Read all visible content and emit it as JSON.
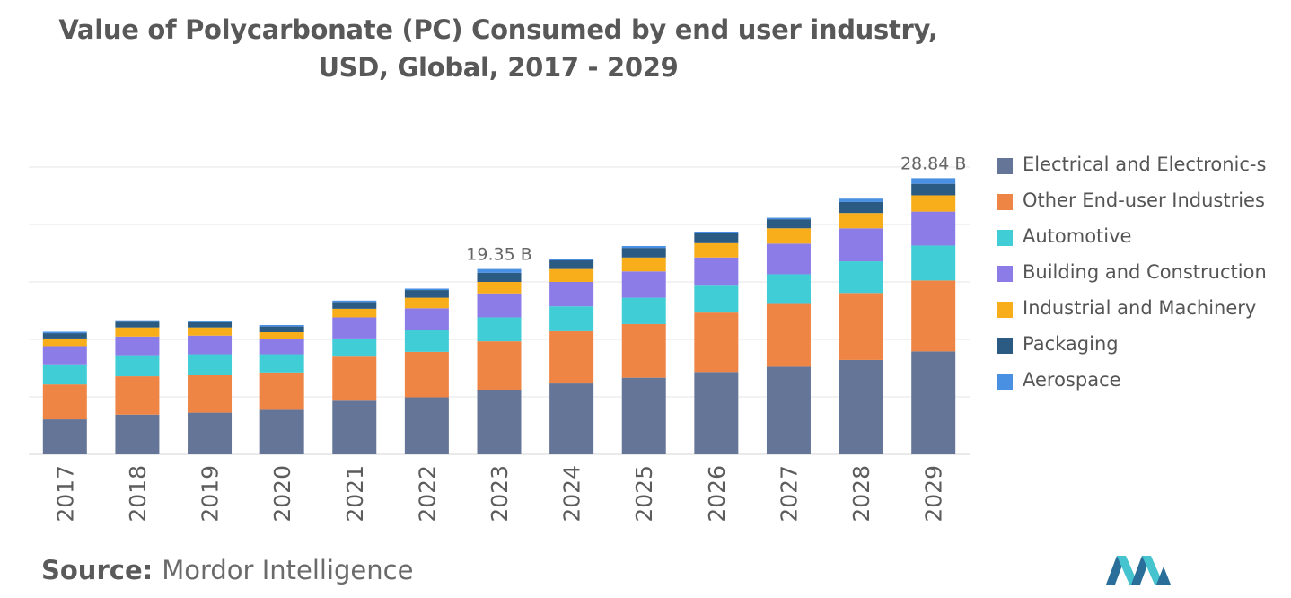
{
  "title": {
    "line1": "Value of Polycarbonate (PC) Consumed by end user industry,",
    "line2": "USD, Global, 2017 - 2029"
  },
  "source": {
    "label": "Source:",
    "value": "Mordor Intelligence"
  },
  "logo_icon": "mordor-intelligence-logo-icon",
  "chart_data": {
    "type": "bar",
    "stacked": true,
    "title": "Value of Polycarbonate (PC) Consumed by end user industry, USD, Global, 2017 - 2029",
    "xlabel": "",
    "ylabel": "",
    "unit": "B USD",
    "ylim": [
      0,
      30
    ],
    "grid": true,
    "legend_position": "right",
    "categories": [
      "2017",
      "2018",
      "2019",
      "2020",
      "2021",
      "2022",
      "2023",
      "2024",
      "2025",
      "2026",
      "2027",
      "2028",
      "2029"
    ],
    "series": [
      {
        "name": "Electrical and Electronic-s",
        "color": "#657597",
        "values": [
          3.65,
          4.15,
          4.35,
          4.65,
          5.6,
          5.95,
          6.75,
          7.4,
          8.0,
          8.6,
          9.15,
          9.85,
          10.75
        ]
      },
      {
        "name": "Other End-user Industries",
        "color": "#ef8545",
        "values": [
          3.65,
          4.0,
          3.9,
          3.9,
          4.6,
          4.75,
          5.05,
          5.45,
          5.6,
          6.2,
          6.55,
          7.0,
          7.4
        ]
      },
      {
        "name": "Automotive",
        "color": "#40cdd6",
        "values": [
          2.1,
          2.2,
          2.2,
          1.9,
          1.9,
          2.3,
          2.5,
          2.6,
          2.75,
          2.9,
          3.1,
          3.3,
          3.65
        ]
      },
      {
        "name": "Building and Construction",
        "color": "#8c7ce8",
        "values": [
          1.9,
          1.95,
          1.95,
          1.6,
          2.2,
          2.25,
          2.5,
          2.55,
          2.75,
          2.85,
          3.2,
          3.45,
          3.55
        ]
      },
      {
        "name": "Industrial and Machinery",
        "color": "#f8ad1b",
        "values": [
          0.8,
          0.95,
          0.85,
          0.7,
          0.9,
          1.1,
          1.2,
          1.35,
          1.45,
          1.5,
          1.6,
          1.6,
          1.7
        ]
      },
      {
        "name": "Packaging",
        "color": "#2b5b83",
        "values": [
          0.55,
          0.6,
          0.55,
          0.6,
          0.7,
          0.8,
          0.95,
          0.9,
          1.0,
          1.05,
          0.95,
          1.15,
          1.2
        ]
      },
      {
        "name": "Aerospace",
        "color": "#4a90e2",
        "values": [
          0.15,
          0.15,
          0.15,
          0.15,
          0.15,
          0.15,
          0.4,
          0.15,
          0.2,
          0.15,
          0.15,
          0.35,
          0.59
        ]
      }
    ],
    "annotations": [
      {
        "category": "2023",
        "text": "19.35 B"
      },
      {
        "category": "2029",
        "text": "28.84 B"
      }
    ]
  }
}
